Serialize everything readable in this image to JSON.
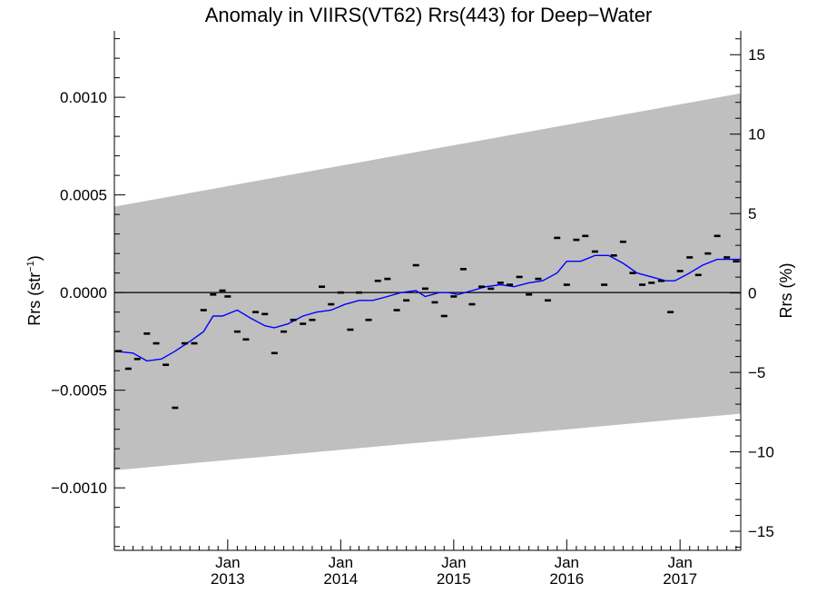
{
  "chart_data": {
    "type": "line",
    "title": "Anomaly in VIIRS(VT62) Rrs(443) for Deep−Water",
    "ylabel_main": "Rrs (str",
    "ylabel_sup": "−1",
    "ylabel_close": ")",
    "ylabel_right": "Rrs (%)",
    "colors": {
      "band": "#bfbfbf",
      "mean_line": "#0000ff",
      "points": "#000000",
      "zero_line": "#000000"
    },
    "xlim": [
      "2012-01-01",
      "2017-07-16"
    ],
    "ylim": [
      -0.00132,
      0.00134
    ],
    "ylim_right": [
      -16.2,
      16.5
    ],
    "x_ticks": [
      {
        "month": "Jan",
        "year": "2013",
        "date": "2013-01-01"
      },
      {
        "month": "Jan",
        "year": "2014",
        "date": "2014-01-01"
      },
      {
        "month": "Jan",
        "year": "2015",
        "date": "2015-01-01"
      },
      {
        "month": "Jan",
        "year": "2016",
        "date": "2016-01-01"
      },
      {
        "month": "Jan",
        "year": "2017",
        "date": "2017-01-01"
      }
    ],
    "y_ticks": [
      {
        "value": 0.001,
        "label": "0.0010"
      },
      {
        "value": 0.0005,
        "label": "0.0005"
      },
      {
        "value": 0.0,
        "label": "0.0000"
      },
      {
        "value": -0.0005,
        "label": "−0.0005"
      },
      {
        "value": -0.001,
        "label": "−0.0010"
      }
    ],
    "y_right_ticks": [
      {
        "value": 15,
        "label": "15"
      },
      {
        "value": 10,
        "label": "10"
      },
      {
        "value": 5,
        "label": "5"
      },
      {
        "value": 0,
        "label": "0"
      },
      {
        "value": -5,
        "label": "−5"
      },
      {
        "value": -10,
        "label": "−10"
      },
      {
        "value": -15,
        "label": "−15"
      }
    ],
    "band": {
      "upper": [
        [
          "2012-01-01",
          0.00044
        ],
        [
          "2017-07-16",
          0.00102
        ]
      ],
      "lower": [
        [
          "2012-01-01",
          -0.00091
        ],
        [
          "2017-07-16",
          -0.00062
        ]
      ]
    },
    "points": [
      [
        "2012-01-15",
        -0.0003
      ],
      [
        "2012-02-15",
        -0.00039
      ],
      [
        "2012-03-15",
        -0.00034
      ],
      [
        "2012-04-15",
        -0.00021
      ],
      [
        "2012-05-15",
        -0.00026
      ],
      [
        "2012-06-15",
        -0.00037
      ],
      [
        "2012-07-15",
        -0.00059
      ],
      [
        "2012-08-15",
        -0.00026
      ],
      [
        "2012-09-15",
        -0.00026
      ],
      [
        "2012-10-15",
        -9e-05
      ],
      [
        "2012-11-15",
        -1e-05
      ],
      [
        "2012-12-15",
        1e-05
      ],
      [
        "2013-01-01",
        -2e-05
      ],
      [
        "2013-02-01",
        -0.0002
      ],
      [
        "2013-03-01",
        -0.00024
      ],
      [
        "2013-04-01",
        -0.0001
      ],
      [
        "2013-05-01",
        -0.00011
      ],
      [
        "2013-06-01",
        -0.00031
      ],
      [
        "2013-07-01",
        -0.0002
      ],
      [
        "2013-08-01",
        -0.00014
      ],
      [
        "2013-09-01",
        -0.00016
      ],
      [
        "2013-10-01",
        -0.00014
      ],
      [
        "2013-11-01",
        3e-05
      ],
      [
        "2013-12-01",
        -6e-05
      ],
      [
        "2014-01-01",
        0.0
      ],
      [
        "2014-02-01",
        -0.00019
      ],
      [
        "2014-03-01",
        0.0
      ],
      [
        "2014-04-01",
        -0.00014
      ],
      [
        "2014-05-01",
        6e-05
      ],
      [
        "2014-06-01",
        7e-05
      ],
      [
        "2014-07-01",
        -9e-05
      ],
      [
        "2014-08-01",
        -4e-05
      ],
      [
        "2014-09-01",
        0.00014
      ],
      [
        "2014-10-01",
        2e-05
      ],
      [
        "2014-11-01",
        -5e-05
      ],
      [
        "2014-12-01",
        -0.00012
      ],
      [
        "2015-01-01",
        -2e-05
      ],
      [
        "2015-02-01",
        0.00012
      ],
      [
        "2015-03-01",
        -6e-05
      ],
      [
        "2015-04-01",
        3e-05
      ],
      [
        "2015-05-01",
        2e-05
      ],
      [
        "2015-06-01",
        5e-05
      ],
      [
        "2015-07-01",
        4e-05
      ],
      [
        "2015-08-01",
        8e-05
      ],
      [
        "2015-09-01",
        -1e-05
      ],
      [
        "2015-10-01",
        7e-05
      ],
      [
        "2015-11-01",
        -4e-05
      ],
      [
        "2015-12-01",
        0.00028
      ],
      [
        "2016-01-01",
        4e-05
      ],
      [
        "2016-02-01",
        0.00027
      ],
      [
        "2016-03-01",
        0.00029
      ],
      [
        "2016-04-01",
        0.00021
      ],
      [
        "2016-05-01",
        4e-05
      ],
      [
        "2016-06-01",
        0.00019
      ],
      [
        "2016-07-01",
        0.00026
      ],
      [
        "2016-08-01",
        0.0001
      ],
      [
        "2016-09-01",
        4e-05
      ],
      [
        "2016-10-01",
        5e-05
      ],
      [
        "2016-11-01",
        6e-05
      ],
      [
        "2016-12-01",
        -0.0001
      ],
      [
        "2017-01-01",
        0.00011
      ],
      [
        "2017-02-01",
        0.00018
      ],
      [
        "2017-03-01",
        9e-05
      ],
      [
        "2017-04-01",
        0.0002
      ],
      [
        "2017-05-01",
        0.00029
      ],
      [
        "2017-06-01",
        0.00018
      ],
      [
        "2017-07-01",
        0.00016
      ]
    ],
    "mean_line": [
      [
        "2012-01-01",
        -0.0003
      ],
      [
        "2012-03-01",
        -0.00031
      ],
      [
        "2012-04-15",
        -0.00035
      ],
      [
        "2012-06-01",
        -0.00034
      ],
      [
        "2012-07-15",
        -0.0003
      ],
      [
        "2012-09-01",
        -0.00025
      ],
      [
        "2012-10-15",
        -0.0002
      ],
      [
        "2012-11-15",
        -0.00012
      ],
      [
        "2012-12-15",
        -0.00012
      ],
      [
        "2013-02-01",
        -9e-05
      ],
      [
        "2013-03-15",
        -0.00013
      ],
      [
        "2013-05-01",
        -0.00017
      ],
      [
        "2013-06-01",
        -0.00018
      ],
      [
        "2013-07-15",
        -0.00016
      ],
      [
        "2013-09-01",
        -0.00012
      ],
      [
        "2013-10-15",
        -0.0001
      ],
      [
        "2013-12-01",
        -9e-05
      ],
      [
        "2014-01-15",
        -6e-05
      ],
      [
        "2014-03-01",
        -4e-05
      ],
      [
        "2014-04-15",
        -4e-05
      ],
      [
        "2014-06-01",
        -2e-05
      ],
      [
        "2014-07-15",
        0.0
      ],
      [
        "2014-09-01",
        1e-05
      ],
      [
        "2014-10-01",
        -2e-05
      ],
      [
        "2014-11-15",
        0.0
      ],
      [
        "2014-12-15",
        0.0
      ],
      [
        "2015-01-15",
        -1e-05
      ],
      [
        "2015-03-01",
        1e-05
      ],
      [
        "2015-04-15",
        3e-05
      ],
      [
        "2015-06-01",
        4e-05
      ],
      [
        "2015-07-15",
        3e-05
      ],
      [
        "2015-09-01",
        5e-05
      ],
      [
        "2015-10-15",
        6e-05
      ],
      [
        "2015-12-01",
        0.0001
      ],
      [
        "2016-01-01",
        0.00016
      ],
      [
        "2016-02-15",
        0.00016
      ],
      [
        "2016-04-01",
        0.00019
      ],
      [
        "2016-05-15",
        0.00019
      ],
      [
        "2016-07-01",
        0.00015
      ],
      [
        "2016-08-15",
        0.0001
      ],
      [
        "2016-10-01",
        8e-05
      ],
      [
        "2016-11-15",
        6e-05
      ],
      [
        "2016-12-15",
        6e-05
      ],
      [
        "2017-02-01",
        0.0001
      ],
      [
        "2017-03-15",
        0.00014
      ],
      [
        "2017-05-01",
        0.00017
      ],
      [
        "2017-06-15",
        0.00017
      ],
      [
        "2017-07-16",
        0.00017
      ]
    ]
  }
}
